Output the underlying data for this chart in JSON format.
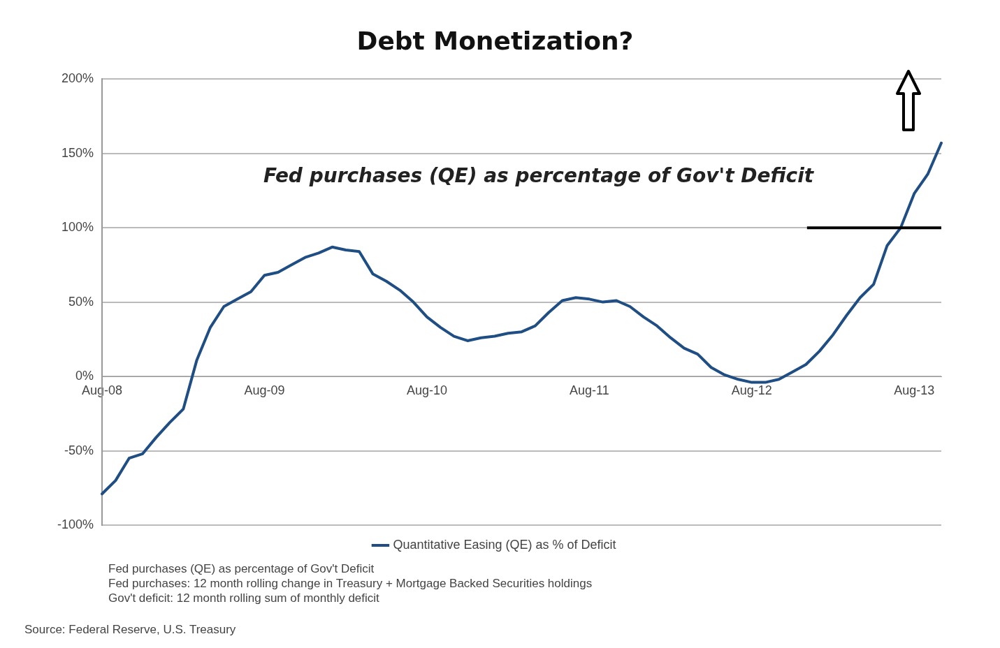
{
  "chart_data": {
    "type": "line",
    "title": "Debt Monetization?",
    "categories": [
      "Aug-08",
      null,
      null,
      null,
      null,
      null,
      null,
      null,
      null,
      null,
      null,
      null,
      "Aug-09",
      null,
      null,
      null,
      null,
      null,
      null,
      null,
      null,
      null,
      null,
      null,
      "Aug-10",
      null,
      null,
      null,
      null,
      null,
      null,
      null,
      null,
      null,
      null,
      null,
      "Aug-11",
      null,
      null,
      null,
      null,
      null,
      null,
      null,
      null,
      null,
      null,
      null,
      "Aug-12",
      null,
      null,
      null,
      null,
      null,
      null,
      null,
      null,
      null,
      null,
      null,
      "Aug-13",
      null,
      null
    ],
    "series": [
      {
        "name": "Quantitative Easing (QE) as % of Deficit",
        "color": "#1f4e85",
        "values": [
          -79,
          -70,
          -55,
          -52,
          -41,
          -31,
          -22,
          11,
          33,
          47,
          52,
          57,
          68,
          70,
          75,
          80,
          83,
          87,
          85,
          84,
          69,
          64,
          58,
          50,
          40,
          33,
          27,
          24,
          26,
          27,
          29,
          30,
          34,
          43,
          51,
          53,
          52,
          50,
          51,
          47,
          40,
          34,
          26,
          19,
          15,
          6,
          1,
          -2,
          -4,
          -4,
          -2,
          3,
          8,
          17,
          28,
          41,
          53,
          62,
          88,
          100,
          123,
          136,
          157
        ]
      }
    ],
    "ylim": [
      -100,
      200
    ],
    "yticks": [
      {
        "value": -100,
        "label": "-100%"
      },
      {
        "value": -50,
        "label": "-50%"
      },
      {
        "value": 0,
        "label": "0%"
      },
      {
        "value": 50,
        "label": "50%"
      },
      {
        "value": 100,
        "label": "100%"
      },
      {
        "value": 150,
        "label": "150%"
      },
      {
        "value": 200,
        "label": "200%"
      }
    ],
    "grid": "y",
    "legend": "bottom",
    "marker": "none",
    "line_style": "solid",
    "ref_lines": [
      {
        "axis": "y",
        "value": 100,
        "color": "#000000"
      }
    ],
    "annotations": [
      "Fed purchases (QE) as percentage of Gov't Deficit",
      "Fed purchases (QE) as percentage of Gov't Deficit\nFed purchases: 12 month rolling change in Treasury + Mortgage Backed Securities holdings\nGov't deficit: 12 month rolling sum of monthly deficit",
      "Source: Federal Reserve, U.S. Treasury"
    ]
  }
}
